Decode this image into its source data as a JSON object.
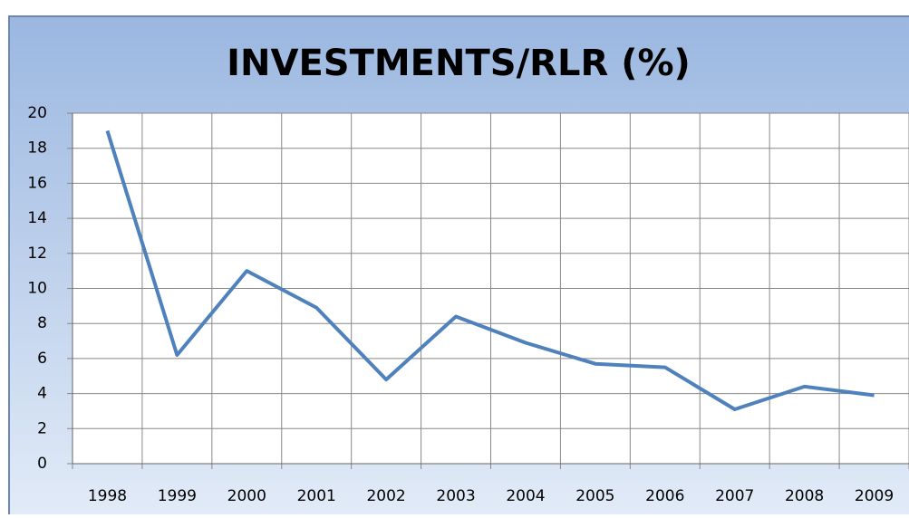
{
  "chart_data": {
    "type": "line",
    "title": "INVESTMENTS/RLR (%)",
    "categories": [
      "1998",
      "1999",
      "2000",
      "2001",
      "2002",
      "2003",
      "2004",
      "2005",
      "2006",
      "2007",
      "2008",
      "2009"
    ],
    "series": [
      {
        "name": "INVESTMENTS/RLR (%)",
        "color": "#4f81bd",
        "values": [
          19,
          6.2,
          11,
          8.9,
          4.8,
          8.4,
          6.9,
          5.7,
          5.5,
          3.1,
          4.4,
          3.9
        ]
      }
    ],
    "ylim": [
      0,
      20
    ],
    "yticks": [
      0,
      2,
      4,
      6,
      8,
      10,
      12,
      14,
      16,
      18,
      20
    ],
    "grid": true
  }
}
